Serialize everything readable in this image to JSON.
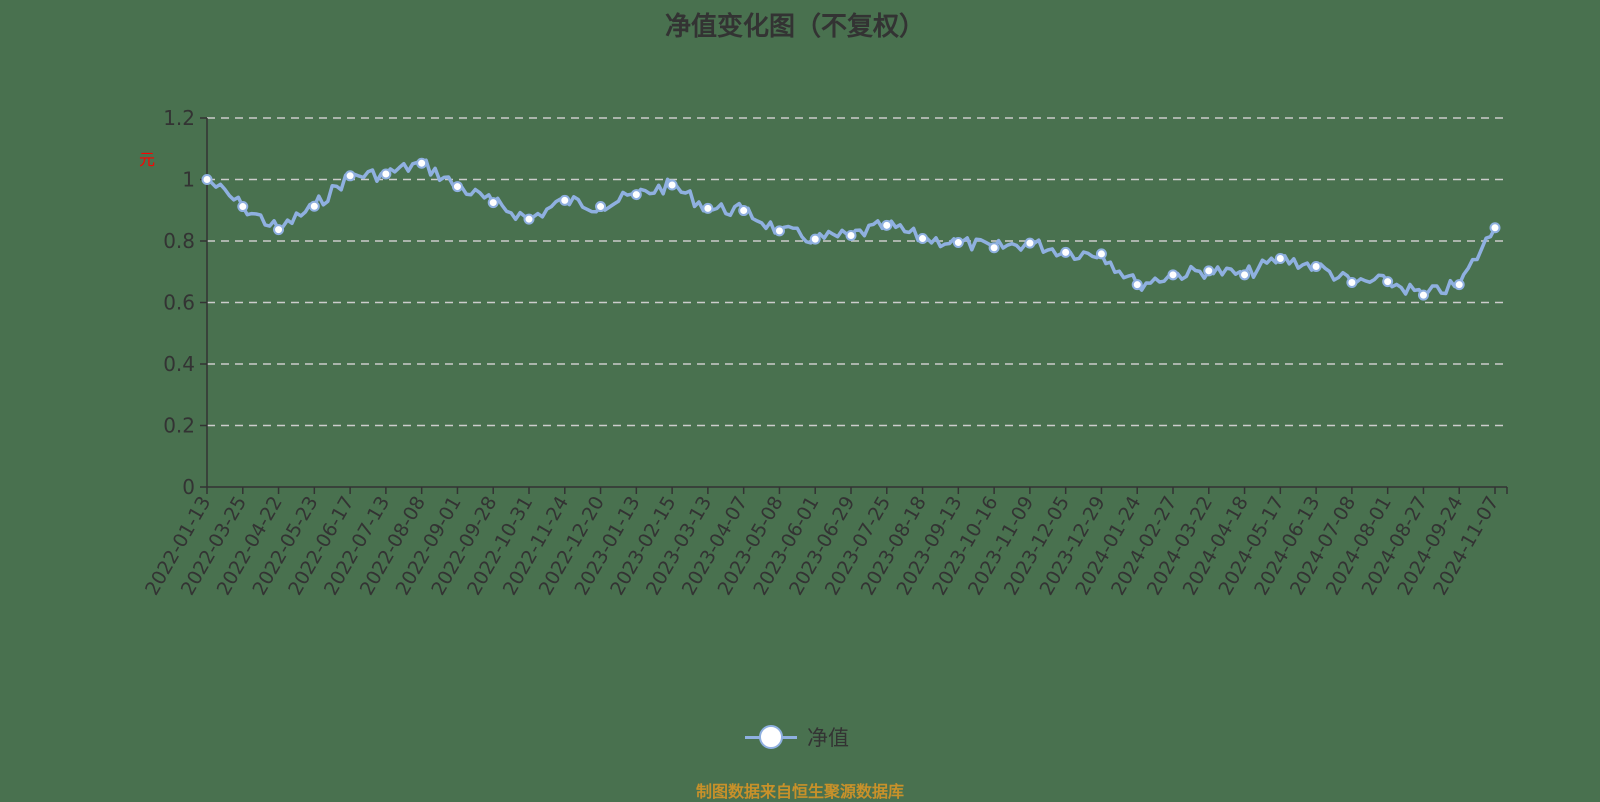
{
  "title": "净值变化图（不复权）",
  "legend": {
    "label": "净值",
    "icon": "circle-line-icon"
  },
  "footer": "制图数据来自恒生聚源数据库",
  "colors": {
    "background": "#49714f",
    "line": "#8fb0e0",
    "marker_fill": "#ffffff",
    "grid": "#cccccc",
    "axis": "#333333",
    "ylabel": "#ff0000",
    "footer": "#c8912a"
  },
  "chart_data": {
    "type": "line",
    "title": "净值变化图（不复权）",
    "xlabel": "",
    "ylabel": "元",
    "ylim": [
      0,
      1.2
    ],
    "yticks": [
      "0",
      "0.2",
      "0.4",
      "0.6",
      "0.8",
      "1",
      "1.2"
    ],
    "grid": true,
    "legend_position": "bottom",
    "categories": [
      "2022-01-13",
      "2022-03-25",
      "2022-04-22",
      "2022-05-23",
      "2022-06-17",
      "2022-07-13",
      "2022-08-08",
      "2022-09-01",
      "2022-09-28",
      "2022-10-31",
      "2022-11-24",
      "2022-12-20",
      "2023-01-13",
      "2023-02-15",
      "2023-03-13",
      "2023-04-07",
      "2023-05-08",
      "2023-06-01",
      "2023-06-29",
      "2023-07-25",
      "2023-08-18",
      "2023-09-13",
      "2023-10-16",
      "2023-11-09",
      "2023-12-05",
      "2023-12-29",
      "2024-01-24",
      "2024-02-27",
      "2024-03-22",
      "2024-04-18",
      "2024-05-17",
      "2024-06-13",
      "2024-07-08",
      "2024-08-01",
      "2024-08-27",
      "2024-09-24",
      "2024-11-07"
    ],
    "series": [
      {
        "name": "净值",
        "values": [
          1.0,
          0.912,
          0.837,
          0.913,
          1.012,
          1.018,
          1.053,
          0.977,
          0.925,
          0.871,
          0.932,
          0.912,
          0.951,
          0.982,
          0.906,
          0.899,
          0.833,
          0.806,
          0.818,
          0.851,
          0.808,
          0.795,
          0.778,
          0.793,
          0.763,
          0.758,
          0.658,
          0.69,
          0.703,
          0.69,
          0.743,
          0.717,
          0.665,
          0.668,
          0.624,
          0.658,
          0.843
        ]
      }
    ]
  }
}
